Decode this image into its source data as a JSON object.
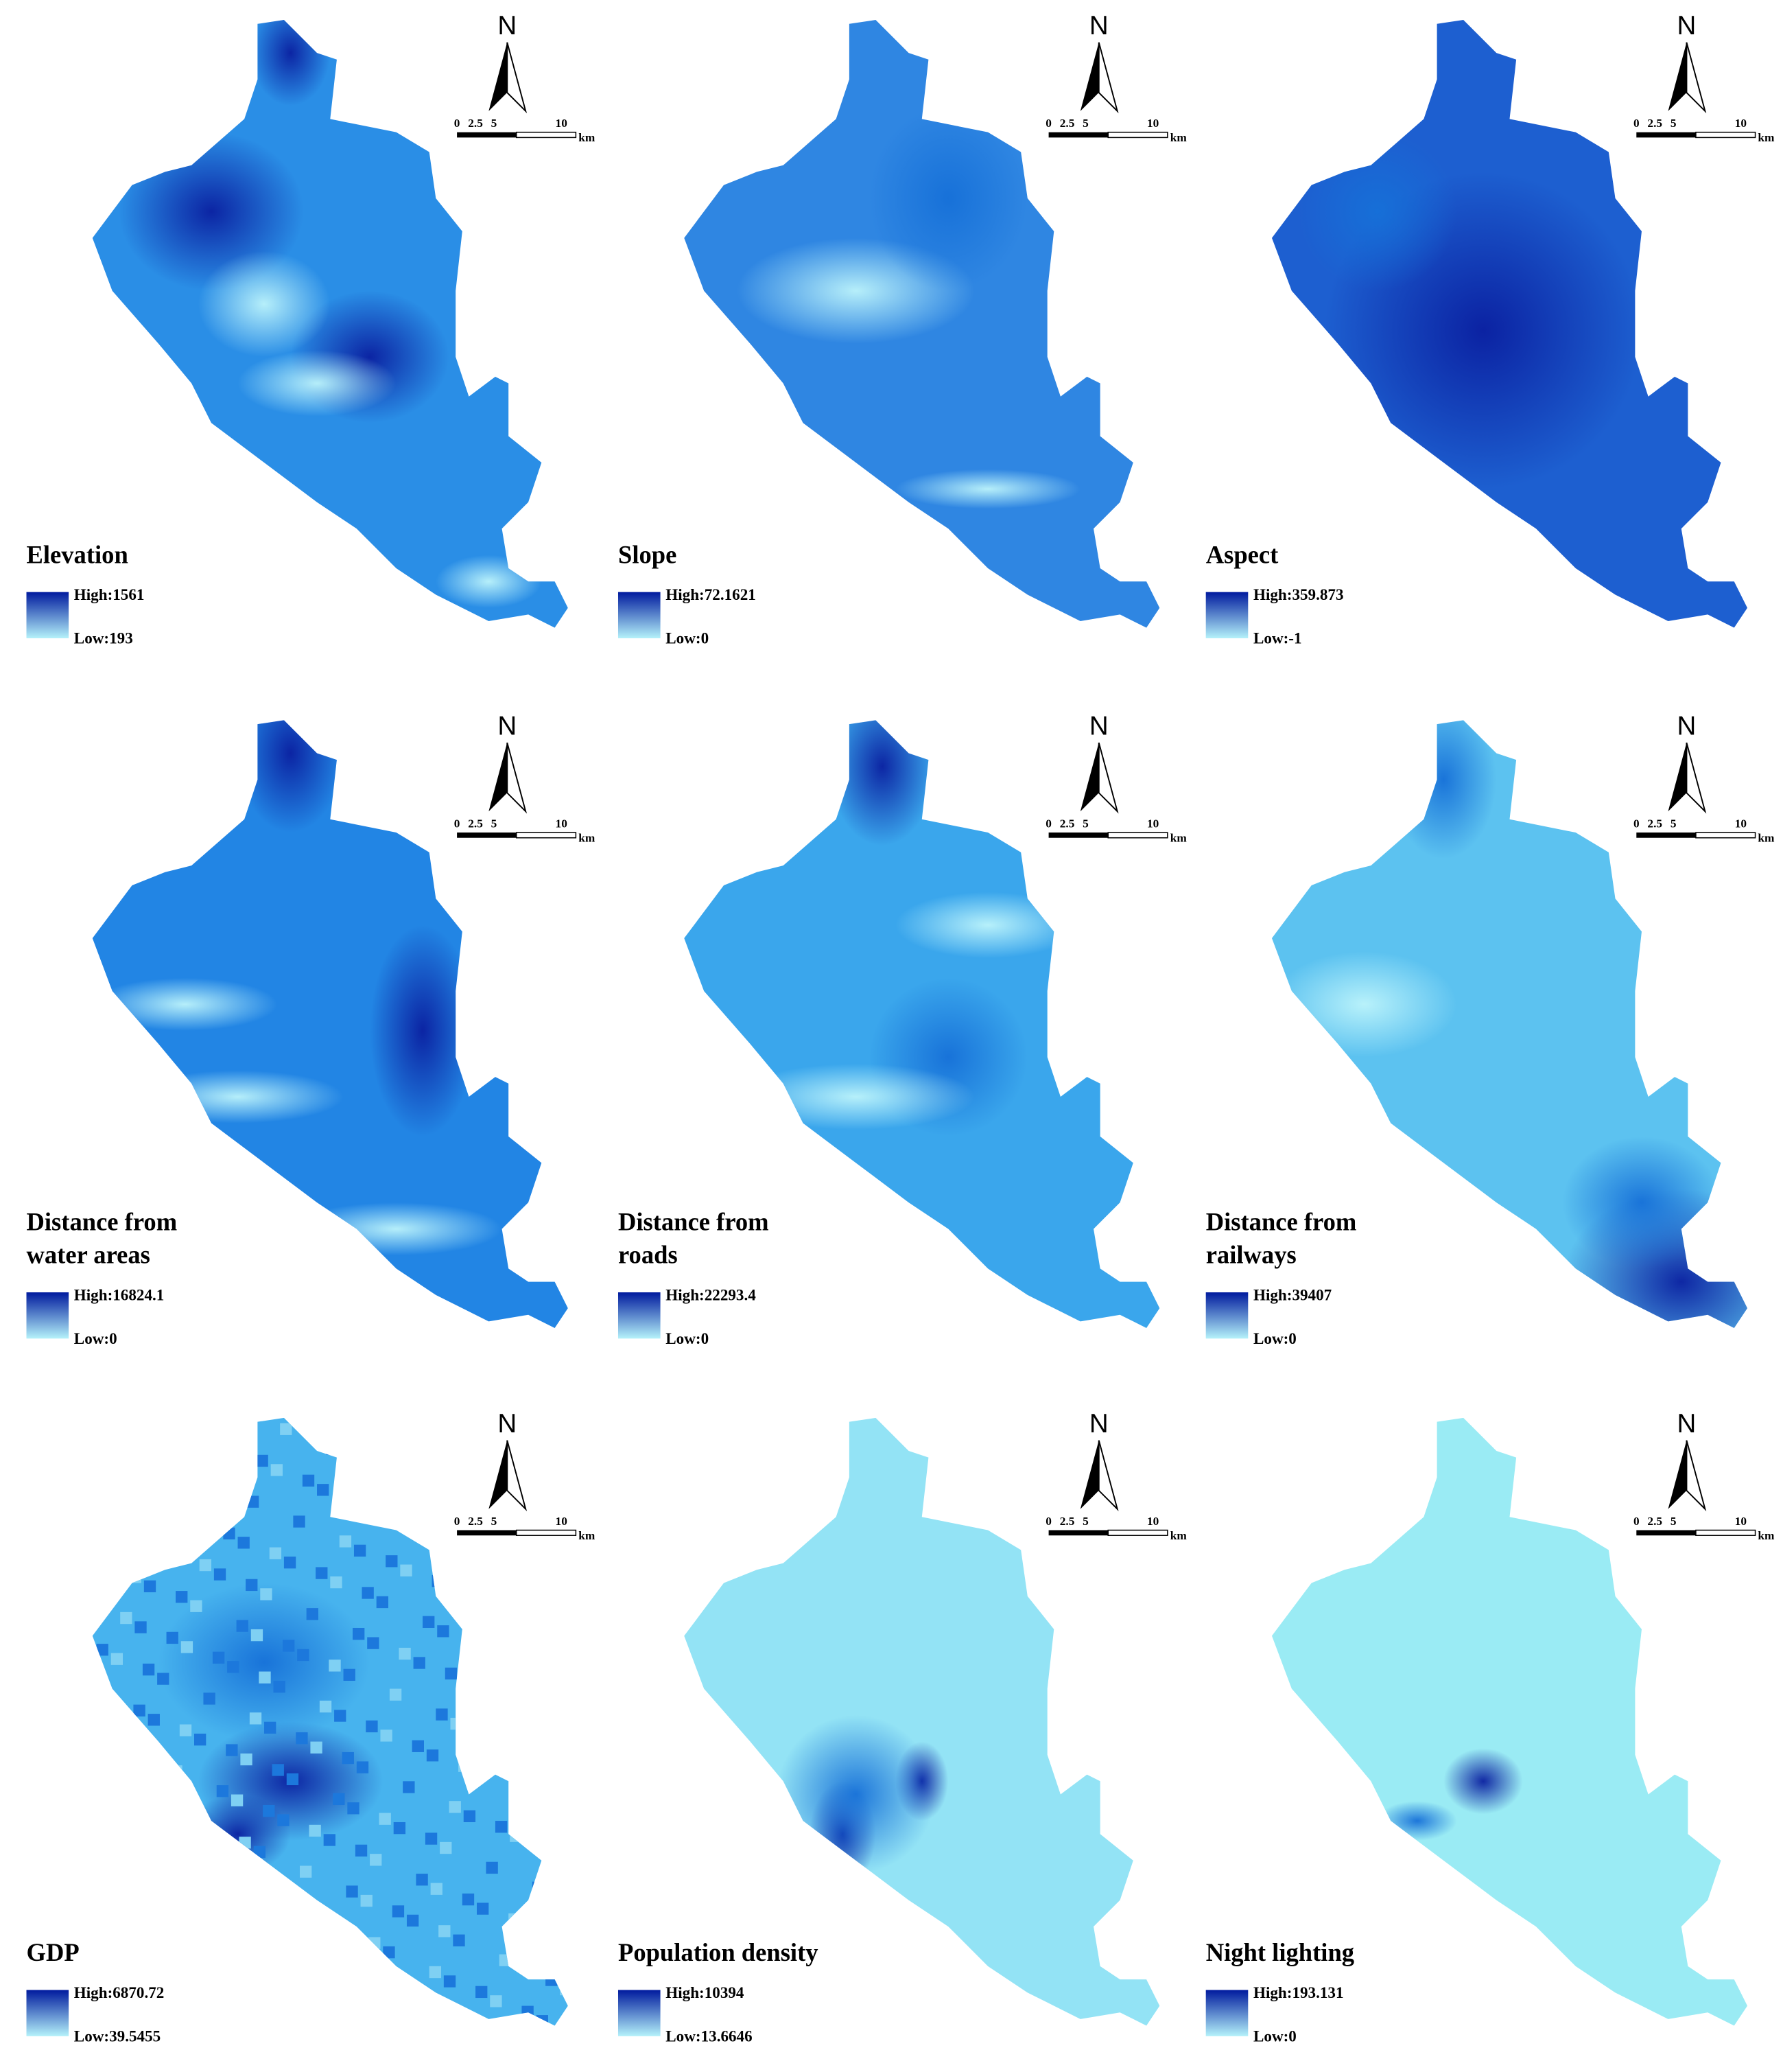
{
  "north": "N",
  "scale_ticks": [
    "0",
    "2.5",
    "5",
    "10"
  ],
  "scale_unit": "km",
  "panels": [
    {
      "title": [
        "Elevation"
      ],
      "high": "High:1561",
      "low": "Low:193"
    },
    {
      "title": [
        "Slope"
      ],
      "high": "High:72.1621",
      "low": "Low:0"
    },
    {
      "title": [
        "Aspect"
      ],
      "high": "High:359.873",
      "low": "Low:-1"
    },
    {
      "title": [
        "Distance from",
        "water areas"
      ],
      "high": "High:16824.1",
      "low": "Low:0"
    },
    {
      "title": [
        "Distance from",
        "roads"
      ],
      "high": "High:22293.4",
      "low": "Low:0"
    },
    {
      "title": [
        "Distance from",
        "railways"
      ],
      "high": "High:39407",
      "low": "Low:0"
    },
    {
      "title": [
        "GDP"
      ],
      "high": "High:6870.72",
      "low": "Low:39.5455"
    },
    {
      "title": [
        "Population density"
      ],
      "high": "High:10394",
      "low": "Low:13.6646"
    },
    {
      "title": [
        "Night lighting"
      ],
      "high": "High:193.131",
      "low": "Low:0"
    }
  ]
}
